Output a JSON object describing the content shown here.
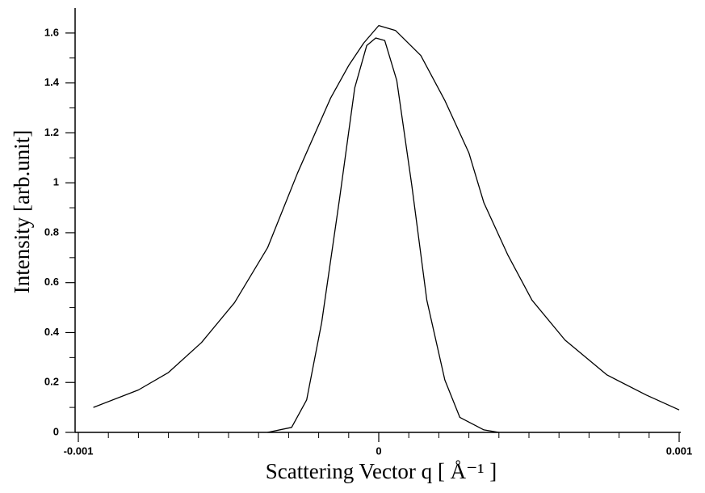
{
  "chart_data": {
    "type": "line",
    "xlabel": "Scattering Vector q  [ Å⁻¹ ]",
    "ylabel": "Intensity [arb.unit]",
    "xlim": [
      -0.001,
      0.001
    ],
    "xticks": [
      -0.001,
      0,
      0.001
    ],
    "ylim": [
      0,
      1.7
    ],
    "yticks": [
      0,
      0.2,
      0.4,
      0.6,
      0.8,
      1,
      1.2,
      1.4,
      1.6
    ],
    "series": [
      {
        "color": "#000000",
        "x": [
          -0.00095,
          -0.0008,
          -0.0007,
          -0.00059,
          -0.00048,
          -0.00037,
          -0.00027,
          -0.00016,
          -0.0001,
          -5e-05,
          0,
          5.6e-05,
          0.00014,
          0.00022,
          0.0003,
          0.00035,
          0.00043,
          0.00051,
          0.00062,
          0.00076,
          0.00089,
          0.001
        ],
        "values": [
          0.1,
          0.17,
          0.24,
          0.36,
          0.52,
          0.74,
          1.04,
          1.34,
          1.47,
          1.56,
          1.63,
          1.61,
          1.51,
          1.33,
          1.12,
          0.92,
          0.71,
          0.53,
          0.37,
          0.23,
          0.15,
          0.09
        ]
      },
      {
        "color": "#000000",
        "x": [
          -0.00037,
          -0.00029,
          -0.00024,
          -0.00019,
          -0.00013,
          -8e-05,
          -4e-05,
          -1e-05,
          2e-05,
          6e-05,
          0.00011,
          0.00016,
          0.00022,
          0.00027,
          0.00035,
          0.0004
        ],
        "values": [
          0,
          0.02,
          0.13,
          0.44,
          0.94,
          1.38,
          1.55,
          1.58,
          1.57,
          1.41,
          0.99,
          0.53,
          0.21,
          0.06,
          0.01,
          0
        ]
      }
    ]
  }
}
